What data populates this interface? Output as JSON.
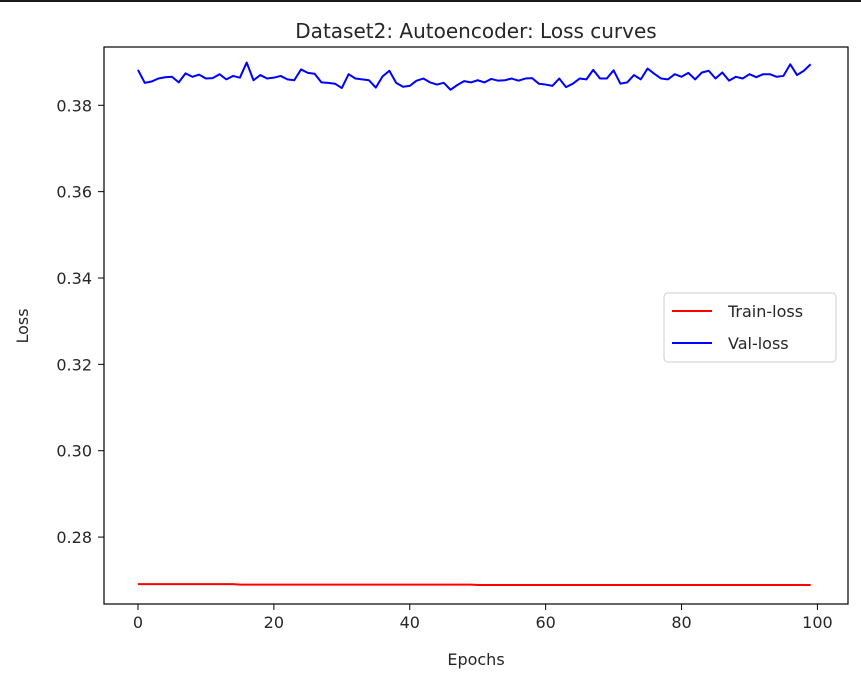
{
  "chart_data": {
    "type": "line",
    "title": "Dataset2: Autoencoder: Loss curves",
    "xlabel": "Epochs",
    "ylabel": "Loss",
    "xlim": [
      -5,
      104.5
    ],
    "ylim": [
      0.2645,
      0.3935
    ],
    "xticks": [
      0,
      20,
      40,
      60,
      80,
      100
    ],
    "yticks": [
      0.28,
      0.3,
      0.32,
      0.34,
      0.36,
      0.38
    ],
    "xtick_labels": [
      "0",
      "20",
      "40",
      "60",
      "80",
      "100"
    ],
    "ytick_labels": [
      "0.28",
      "0.30",
      "0.32",
      "0.34",
      "0.36",
      "0.38"
    ],
    "legend": {
      "placement": "center-right"
    },
    "grid": false,
    "series": [
      {
        "name": "Train-loss",
        "color": "#ff0000",
        "x_start": 0,
        "x_step": 1,
        "values": [
          0.2691,
          0.2691,
          0.2691,
          0.2691,
          0.2691,
          0.2691,
          0.2691,
          0.2691,
          0.2691,
          0.2691,
          0.2691,
          0.2691,
          0.2691,
          0.2691,
          0.2691,
          0.269,
          0.269,
          0.269,
          0.269,
          0.269,
          0.269,
          0.269,
          0.269,
          0.269,
          0.269,
          0.269,
          0.269,
          0.269,
          0.269,
          0.269,
          0.269,
          0.269,
          0.269,
          0.269,
          0.269,
          0.269,
          0.269,
          0.269,
          0.269,
          0.269,
          0.269,
          0.269,
          0.269,
          0.269,
          0.269,
          0.269,
          0.269,
          0.269,
          0.269,
          0.269,
          0.2689,
          0.2689,
          0.2689,
          0.2689,
          0.2689,
          0.2689,
          0.2689,
          0.2689,
          0.2689,
          0.2689,
          0.2689,
          0.2689,
          0.2689,
          0.2689,
          0.2689,
          0.2689,
          0.2689,
          0.2689,
          0.2689,
          0.2689,
          0.2689,
          0.2689,
          0.2689,
          0.2689,
          0.2689,
          0.2689,
          0.2689,
          0.2689,
          0.2689,
          0.2689,
          0.2689,
          0.2689,
          0.2689,
          0.2689,
          0.2689,
          0.2689,
          0.2689,
          0.2689,
          0.2689,
          0.2689,
          0.2689,
          0.2689,
          0.2689,
          0.2689,
          0.2689,
          0.2689,
          0.2689,
          0.2689,
          0.2689,
          0.2689
        ]
      },
      {
        "name": "Val-loss",
        "color": "#0000ff",
        "x_start": 0,
        "x_step": 1,
        "values": [
          0.3882,
          0.3852,
          0.3855,
          0.3862,
          0.3865,
          0.3866,
          0.3853,
          0.3874,
          0.3866,
          0.3871,
          0.3862,
          0.3863,
          0.3872,
          0.386,
          0.3868,
          0.3864,
          0.3899,
          0.3858,
          0.387,
          0.3862,
          0.3864,
          0.3868,
          0.386,
          0.3858,
          0.3883,
          0.3875,
          0.3873,
          0.3853,
          0.3852,
          0.385,
          0.384,
          0.3872,
          0.3862,
          0.386,
          0.3858,
          0.3841,
          0.3867,
          0.388,
          0.3852,
          0.3843,
          0.3845,
          0.3857,
          0.3862,
          0.3853,
          0.3848,
          0.3852,
          0.3836,
          0.3847,
          0.3856,
          0.3853,
          0.3858,
          0.3853,
          0.3861,
          0.3857,
          0.3858,
          0.3862,
          0.3857,
          0.3862,
          0.3863,
          0.385,
          0.3848,
          0.3845,
          0.3862,
          0.3842,
          0.385,
          0.3862,
          0.386,
          0.3882,
          0.3862,
          0.3862,
          0.3881,
          0.385,
          0.3853,
          0.387,
          0.386,
          0.3885,
          0.3873,
          0.3862,
          0.386,
          0.3872,
          0.3866,
          0.3875,
          0.386,
          0.3876,
          0.388,
          0.3862,
          0.3876,
          0.3857,
          0.3866,
          0.3862,
          0.3872,
          0.3865,
          0.3872,
          0.3872,
          0.3866,
          0.3868,
          0.3895,
          0.387,
          0.388,
          0.3895
        ]
      }
    ]
  }
}
